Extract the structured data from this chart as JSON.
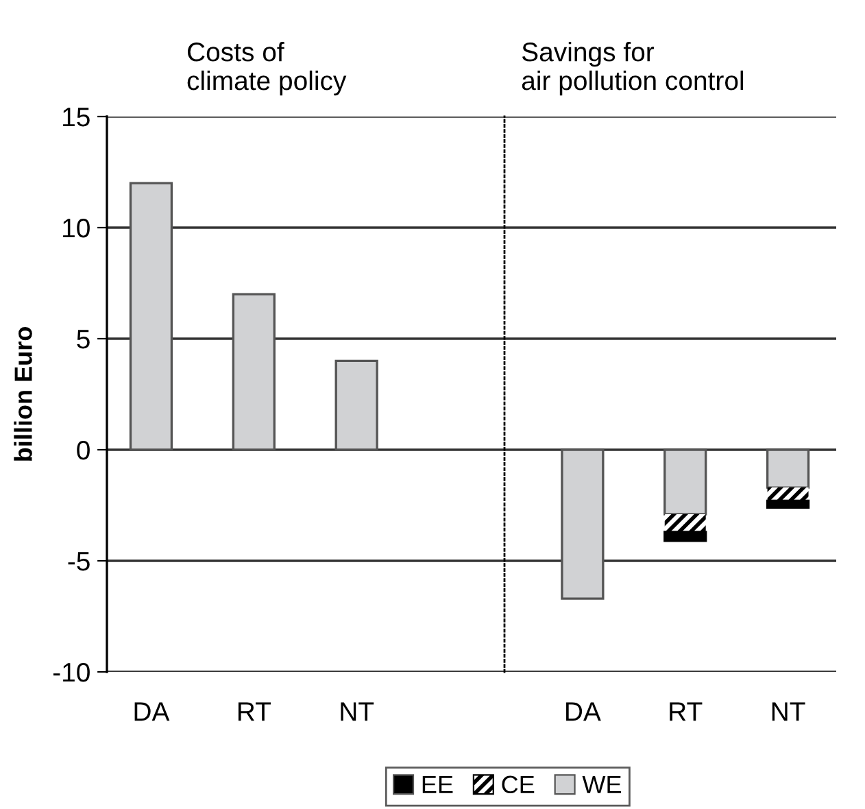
{
  "chart_data": [
    {
      "type": "bar",
      "title": "Costs of\nclimate policy",
      "ylabel": "billion Euro",
      "categories": [
        "DA",
        "RT",
        "NT"
      ],
      "series": [
        {
          "color": "#d1d2d4",
          "values": [
            12,
            7,
            4
          ]
        }
      ],
      "ylim": [
        -10,
        15
      ],
      "yticks": [
        -10,
        -5,
        0,
        5,
        10,
        15
      ],
      "grid": "y"
    },
    {
      "type": "bar",
      "title": "Savings for\nair pollution control",
      "categories": [
        "DA",
        "RT",
        "NT"
      ],
      "stacked": true,
      "series": [
        {
          "name": "WE",
          "color": "#d1d2d4",
          "values": [
            -6.7,
            -2.9,
            -1.7
          ]
        },
        {
          "name": "CE",
          "color": "#000000",
          "values": [
            null,
            -0.8,
            -0.6
          ]
        },
        {
          "name": "EE",
          "color": "#000000",
          "values": [
            null,
            -0.4,
            -0.3
          ]
        }
      ],
      "ylim": [
        -10,
        15
      ],
      "yticks": [
        -10,
        -5,
        0,
        5,
        10,
        15
      ],
      "grid": "y",
      "tick_labels": "x",
      "legend": "bottom"
    }
  ]
}
